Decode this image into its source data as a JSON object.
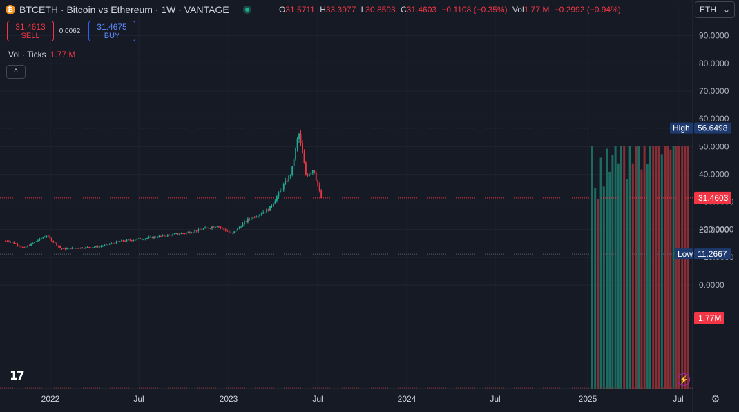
{
  "header": {
    "symbol_title": "BTCETH · Bitcoin vs Ethereum · 1W · VANTAGE",
    "ohlc": {
      "o_label": "O",
      "o": "31.5711",
      "h_label": "H",
      "h": "33.3977",
      "l_label": "L",
      "l": "30.8593",
      "c_label": "C",
      "c": "31.4603",
      "change": "−0.1108 (−0.35%)",
      "vol_label": "Vol",
      "vol": "1.77 M",
      "vol_change": "−0.2992 (−0.94%)"
    }
  },
  "trade": {
    "sell_price": "31.4613",
    "sell_label": "SELL",
    "spread": "0.0062",
    "buy_price": "31.4675",
    "buy_label": "BUY"
  },
  "volume_legend": {
    "label": "Vol · Ticks",
    "value": "1.77 M"
  },
  "collapse_icon": "^",
  "currency_select": {
    "value": "ETH"
  },
  "colors": {
    "up": "#22ab94",
    "down": "#f23645",
    "background": "#161a25",
    "axis_text": "#b2b5be",
    "high_low": "#1e3a6e",
    "last_price": "#f23645"
  },
  "icons": {
    "logo": "tradingview-logo-icon",
    "settings": "gear-icon",
    "alerts": "lightning-icon"
  },
  "chart_data": [
    {
      "type": "candlestick",
      "title": "BTCETH · Bitcoin vs Ethereum · 1W · VANTAGE",
      "x_axis_labels": [
        "2022",
        "Jul",
        "2023",
        "Jul",
        "2024",
        "Jul",
        "2025",
        "Jul"
      ],
      "y_tick_labels": [
        "90.0000",
        "80.0000",
        "70.0000",
        "60.0000",
        "50.0000",
        "40.0000",
        "20.0000"
      ],
      "ylim": [
        8,
        97
      ],
      "high": {
        "label": "High",
        "value": "56.6498"
      },
      "low": {
        "label": "Low",
        "value": "11.2667"
      },
      "last_price": "31.4603",
      "key_closes": [
        {
          "x": "2022-01",
          "y": 16
        },
        {
          "x": "2022-03",
          "y": 13.4
        },
        {
          "x": "2022-06",
          "y": 18
        },
        {
          "x": "2022-08",
          "y": 13.1
        },
        {
          "x": "2023-01",
          "y": 13.9
        },
        {
          "x": "2023-04",
          "y": 15.9
        },
        {
          "x": "2023-07",
          "y": 16.8
        },
        {
          "x": "2024-01",
          "y": 19
        },
        {
          "x": "2024-05",
          "y": 21.5
        },
        {
          "x": "2024-07",
          "y": 18.5
        },
        {
          "x": "2024-09",
          "y": 23.5
        },
        {
          "x": "2024-12",
          "y": 27.5
        },
        {
          "x": "2025-03",
          "y": 40.5
        },
        {
          "x": "2025-04",
          "y": 55
        },
        {
          "x": "2025-05",
          "y": 39.5
        },
        {
          "x": "2025-06",
          "y": 42
        },
        {
          "x": "2025-07",
          "y": 31.46
        }
      ],
      "grid": true
    },
    {
      "type": "bar",
      "title": "Vol · Ticks",
      "y_tick_labels": [
        "0.0000",
        "−10.0000",
        "−20.0000",
        "−30.0000"
      ],
      "last_value_label": "1.77M"
    }
  ]
}
